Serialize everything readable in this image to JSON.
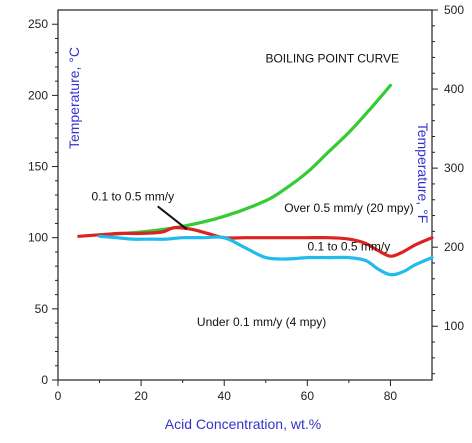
{
  "chart_data": {
    "type": "line",
    "title": "",
    "xlabel": "Acid Concentration, wt.%",
    "ylabel_left": "Temperature, °C",
    "ylabel_right": "Temperature, °F",
    "xlim": [
      0,
      90
    ],
    "ylim": [
      0,
      260
    ],
    "x_ticks": [
      0,
      20,
      40,
      60,
      80
    ],
    "y_ticks_left": [
      0,
      50,
      100,
      150,
      200,
      250
    ],
    "y_ticks_right_f": [
      100,
      200,
      300,
      400,
      500
    ],
    "grid": false,
    "series": [
      {
        "name": "BOILING POINT CURVE",
        "color": "#33cc33",
        "x": [
          10,
          20,
          30,
          40,
          50,
          55,
          60,
          65,
          70,
          75,
          80
        ],
        "y": [
          102,
          104,
          108,
          115,
          126,
          135,
          146,
          160,
          174,
          190,
          207
        ]
      },
      {
        "name": "",
        "color": "#dd2222",
        "x": [
          5,
          10,
          15,
          20,
          25,
          28,
          32,
          36,
          40,
          45,
          50,
          55,
          60,
          65,
          70,
          74,
          77,
          80,
          83,
          86,
          90
        ],
        "y": [
          101,
          102,
          103,
          103,
          104,
          107,
          106,
          103,
          100,
          100,
          100,
          100,
          100,
          100,
          99,
          96,
          91,
          87,
          90,
          95,
          100
        ]
      },
      {
        "name": "",
        "color": "#22bbee",
        "x": [
          10,
          14,
          18,
          22,
          26,
          30,
          35,
          40,
          45,
          50,
          55,
          60,
          65,
          70,
          74,
          77,
          80,
          83,
          86,
          90
        ],
        "y": [
          101,
          100,
          99,
          99,
          99,
          100,
          100,
          100,
          93,
          86,
          85,
          86,
          86,
          86,
          84,
          78,
          74,
          76,
          81,
          86
        ]
      }
    ],
    "annotations": [
      {
        "text": "BOILING POINT CURVE",
        "x": 66,
        "y": 223,
        "color": "#33cc33"
      },
      {
        "text": "0.1 to 0.5 mm/y",
        "x": 18,
        "y": 126,
        "color": "#111111"
      },
      {
        "text": "Over 0.5 mm/y (20 mpy)",
        "x": 70,
        "y": 118,
        "color": "#111111"
      },
      {
        "text": "0.1 to 0.5 mm/y",
        "x": 70,
        "y": 91,
        "color": "#111111"
      },
      {
        "text": "Under 0.1 mm/y (4 mpy)",
        "x": 49,
        "y": 38,
        "color": "#111111"
      }
    ]
  }
}
